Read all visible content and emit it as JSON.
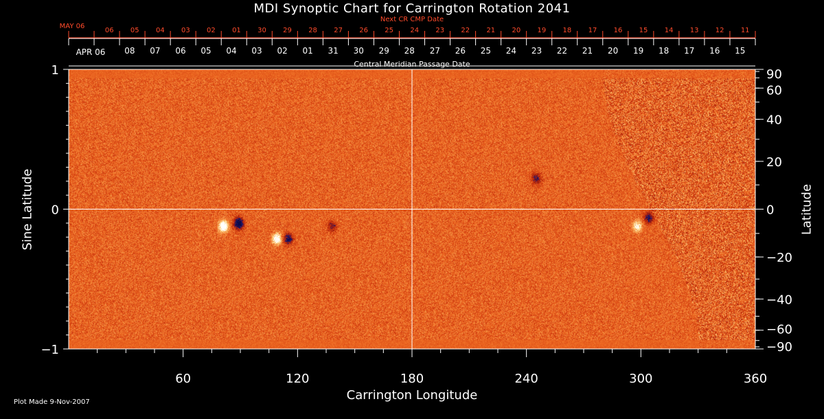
{
  "title": "MDI Synoptic Chart for Carrington Rotation 2041",
  "top_axis": {
    "label": "Next CR CMP Date",
    "first_tick": "MAY 06",
    "dates": [
      "06",
      "05",
      "04",
      "03",
      "02",
      "01",
      "30",
      "29",
      "28",
      "27",
      "26",
      "25",
      "24",
      "23",
      "22",
      "21",
      "20",
      "19",
      "18",
      "17",
      "16",
      "15",
      "14",
      "13",
      "12",
      "11"
    ],
    "color": "#ff4b2b"
  },
  "mid_axis": {
    "label": "Central Meridian Passage Date",
    "first_tick": "APR 06",
    "dates": [
      "08",
      "07",
      "06",
      "05",
      "04",
      "03",
      "02",
      "01",
      "31",
      "30",
      "29",
      "28",
      "27",
      "26",
      "25",
      "24",
      "23",
      "22",
      "21",
      "20",
      "19",
      "18",
      "17",
      "16",
      "15"
    ]
  },
  "footer": {
    "plot_made": "Plot Made  9-Nov-2007"
  },
  "colors": {
    "background": "#000000",
    "axis": "#ffffff",
    "accent": "#ff4b2b",
    "map_base": "#e8501c"
  },
  "chart_data": {
    "type": "heatmap",
    "title": "MDI Synoptic Chart for Carrington Rotation 2041",
    "xlabel": "Carrington Longitude",
    "ylabel": "Sine Latitude",
    "ylabel_right": "Latitude",
    "xlim": [
      0,
      360
    ],
    "ylim": [
      -1,
      1
    ],
    "x_ticks": [
      60,
      120,
      180,
      240,
      300,
      360
    ],
    "y_ticks_left": [
      1,
      0,
      -1
    ],
    "y_ticks_left_labels": [
      "1",
      "0",
      "−1"
    ],
    "y_ticks_right": [
      90,
      60,
      40,
      20,
      0,
      -20,
      -40,
      -60,
      -90
    ],
    "y_ticks_right_labels": [
      "90",
      "60",
      "40",
      "20",
      "0",
      "−20",
      "−40",
      "−60",
      "−90"
    ],
    "grid_lines": {
      "x": [
        180
      ],
      "y": [
        0
      ]
    },
    "colormap": [
      "#0a0a4a",
      "#1a1a7a",
      "#a01808",
      "#d03a10",
      "#ee6a22",
      "#f6a050",
      "#ffe090",
      "#ffffff"
    ],
    "active_regions": [
      {
        "lon": 81,
        "sinlat": -0.12,
        "polarity": "positive",
        "strength": 1.0
      },
      {
        "lon": 89,
        "sinlat": -0.1,
        "polarity": "negative",
        "strength": 1.0
      },
      {
        "lon": 109,
        "sinlat": -0.21,
        "polarity": "positive",
        "strength": 0.8
      },
      {
        "lon": 115,
        "sinlat": -0.21,
        "polarity": "negative",
        "strength": 0.7
      },
      {
        "lon": 138,
        "sinlat": -0.12,
        "polarity": "negative",
        "strength": 0.4
      },
      {
        "lon": 298,
        "sinlat": -0.12,
        "polarity": "positive",
        "strength": 0.6
      },
      {
        "lon": 304,
        "sinlat": -0.06,
        "polarity": "negative",
        "strength": 0.6
      },
      {
        "lon": 245,
        "sinlat": 0.22,
        "polarity": "negative",
        "strength": 0.5
      }
    ]
  }
}
